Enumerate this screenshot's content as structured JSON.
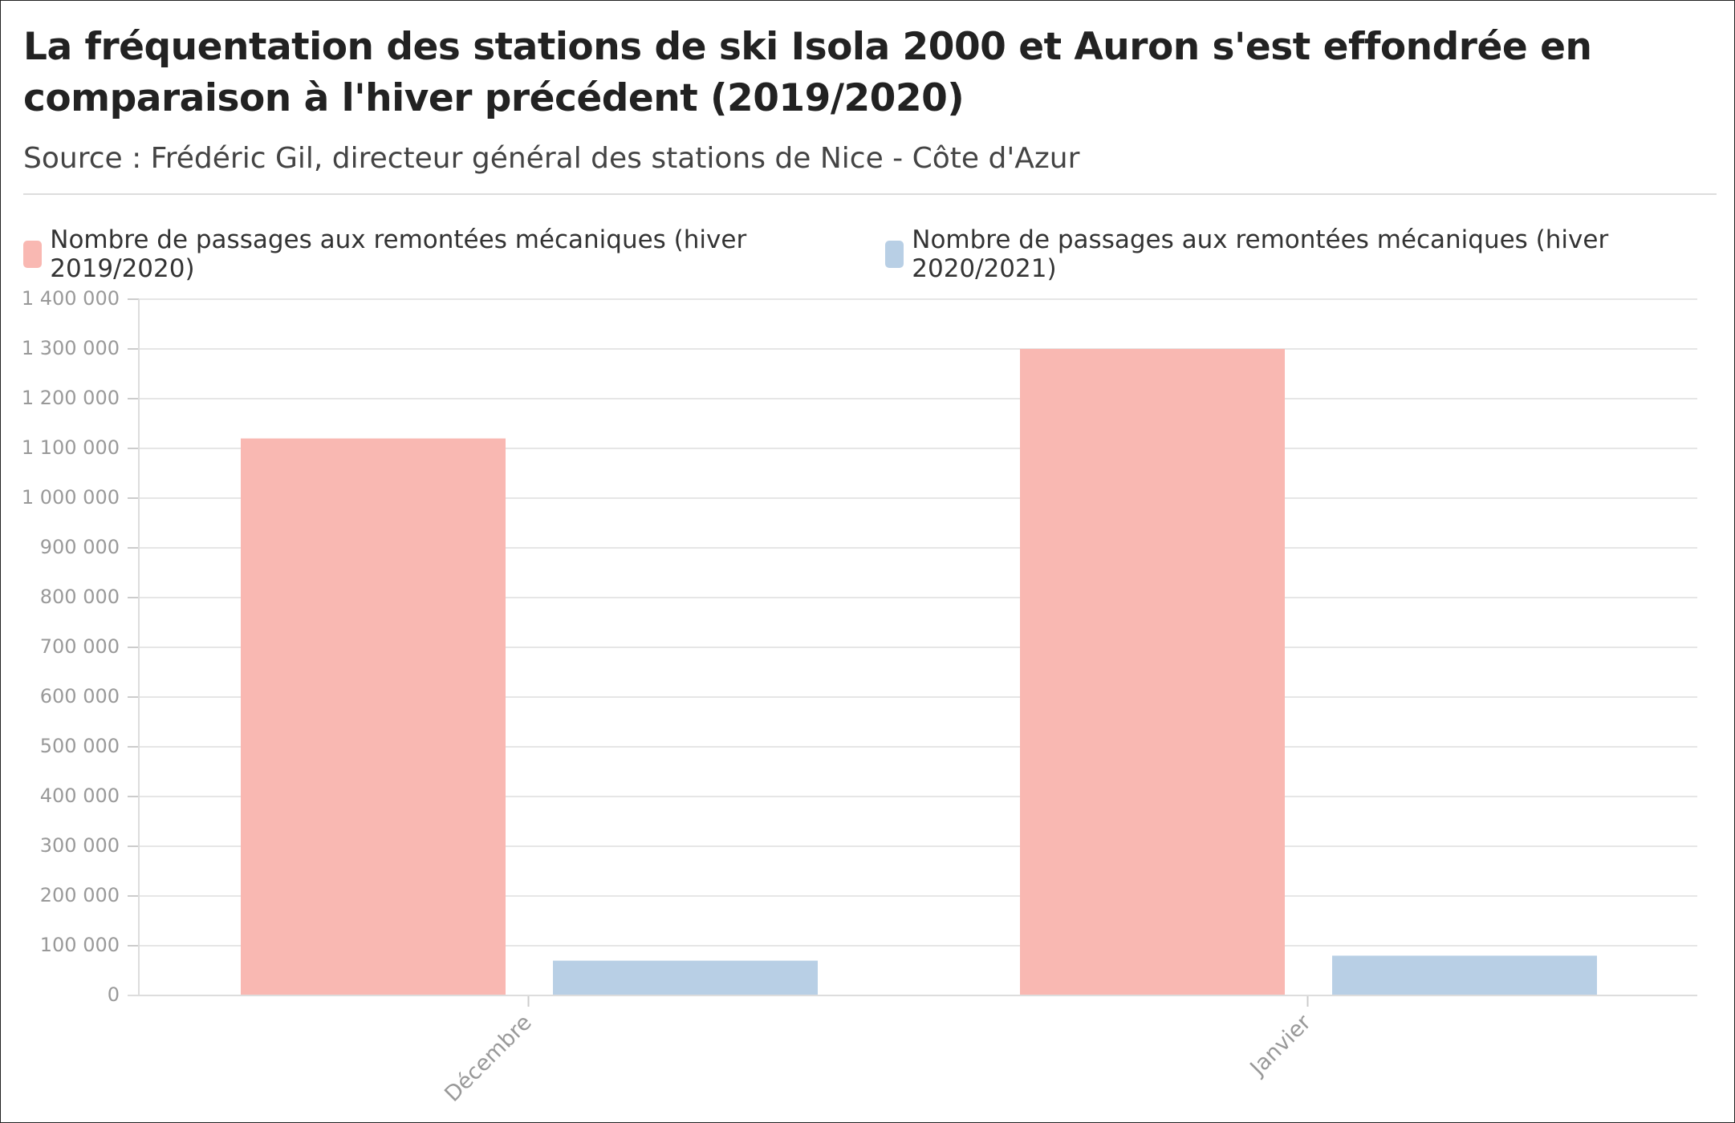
{
  "chart_data": {
    "type": "bar",
    "title": "La fréquentation des stations de ski Isola 2000 et Auron s'est effondrée en comparaison à l'hiver précédent (2019/2020)",
    "subtitle": "Source : Frédéric Gil, directeur général des stations de Nice - Côte d'Azur",
    "categories": [
      "Décembre",
      "Janvier"
    ],
    "series": [
      {
        "name": "Nombre de passages aux remontées mécaniques (hiver 2019/2020)",
        "color": "#f9b8b2",
        "values": [
          1120000,
          1300000
        ]
      },
      {
        "name": "Nombre de passages aux remontées mécaniques (hiver 2020/2021)",
        "color": "#b8cfe5",
        "values": [
          70000,
          80000
        ]
      }
    ],
    "ylim": [
      0,
      1400000
    ],
    "yticks": [
      0,
      {
        "value": 100000,
        "label": "100 000"
      },
      {
        "value": 200000,
        "label": "200 000"
      },
      {
        "value": 300000,
        "label": "300 000"
      },
      {
        "value": 400000,
        "label": "400 000"
      },
      {
        "value": 500000,
        "label": "500 000"
      },
      {
        "value": 600000,
        "label": "600 000"
      },
      {
        "value": 700000,
        "label": "700 000"
      },
      {
        "value": 800000,
        "label": "800 000"
      },
      {
        "value": 900000,
        "label": "900 000"
      },
      {
        "value": 1000000,
        "label": "1 000 000"
      },
      {
        "value": 1100000,
        "label": "1 100 000"
      },
      {
        "value": 1200000,
        "label": "1 200 000"
      },
      {
        "value": 1300000,
        "label": "1 300 000"
      },
      {
        "value": 1400000,
        "label": "1 400 000"
      }
    ],
    "grid": true
  }
}
